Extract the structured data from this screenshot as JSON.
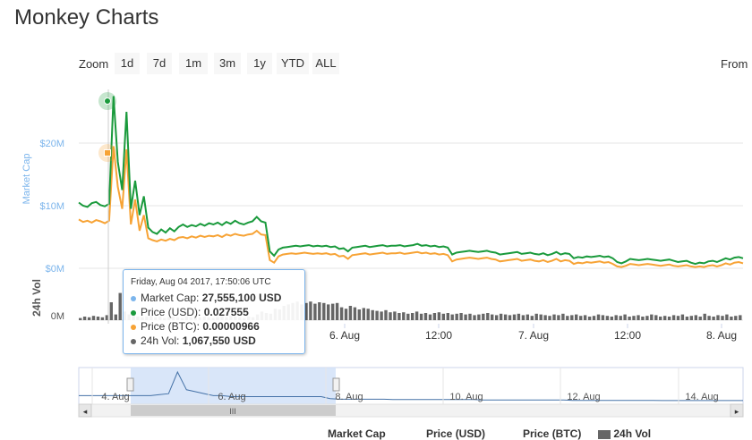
{
  "header": {
    "title": "Monkey Charts"
  },
  "toolbar": {
    "zoom_label": "Zoom",
    "buttons": [
      "1d",
      "7d",
      "1m",
      "3m",
      "1y",
      "YTD",
      "ALL"
    ],
    "from_label": "From"
  },
  "colors": {
    "market_cap": "#7cb5ec",
    "price_usd": "#1a9a3c",
    "price_btc": "#f7a335",
    "volume": "#666666",
    "navigator_fill": "#cfe0f7"
  },
  "chart_data": {
    "type": "line",
    "ylabel": "Market Cap",
    "y_ticks": [
      "$0M",
      "$10M",
      "$20M"
    ],
    "volume_label": "24h Vol",
    "volume_ticks": [
      "0M"
    ],
    "x_ticks": [
      "6. Aug",
      "12:00",
      "7. Aug",
      "12:00",
      "8. Aug"
    ],
    "navigator_ticks": [
      "4. Aug",
      "6. Aug",
      "8. Aug",
      "10. Aug",
      "12. Aug",
      "14. Aug"
    ],
    "series": [
      {
        "name": "Price (USD)",
        "values": [
          10.5,
          10.0,
          9.8,
          10.4,
          10.6,
          10.1,
          9.9,
          10.3,
          27.5,
          17.0,
          12.5,
          25.0,
          9.5,
          14.0,
          8.5,
          11.5,
          6.5,
          5.8,
          5.5,
          6.2,
          5.7,
          6.4,
          5.9,
          6.6,
          7.0,
          6.6,
          6.9,
          6.7,
          7.1,
          6.8,
          7.2,
          7.0,
          7.3,
          6.9,
          7.4,
          7.1,
          7.6,
          7.2,
          7.0,
          7.3,
          7.5,
          8.2,
          7.5,
          7.3,
          2.7,
          2.0,
          3.0,
          3.3,
          3.4,
          3.5,
          3.6,
          3.5,
          3.6,
          3.7,
          3.5,
          3.6,
          3.5,
          3.6,
          3.4,
          3.5,
          3.1,
          3.2,
          2.7,
          3.3,
          3.4,
          3.5,
          3.6,
          3.4,
          3.5,
          3.6,
          3.7,
          3.5,
          3.6,
          3.6,
          3.7,
          3.5,
          3.6,
          3.7,
          3.9,
          3.6,
          3.7,
          3.5,
          3.6,
          3.4,
          3.5,
          3.3,
          2.2,
          2.5,
          2.6,
          2.7,
          2.8,
          2.7,
          2.6,
          2.7,
          2.8,
          2.6,
          2.5,
          2.2,
          2.3,
          2.4,
          2.5,
          2.6,
          2.3,
          2.4,
          2.5,
          2.3,
          2.2,
          2.4,
          2.1,
          2.3,
          2.6,
          2.2,
          2.4,
          2.3,
          1.6,
          1.8,
          1.7,
          1.9,
          1.8,
          1.9,
          2.0,
          1.8,
          1.9,
          1.6,
          1.0,
          0.8,
          1.1,
          1.5,
          1.4,
          1.3,
          1.4,
          1.5,
          1.4,
          1.3,
          1.2,
          1.3,
          1.4,
          1.2,
          1.0,
          1.1,
          1.2,
          0.9,
          0.7,
          0.9,
          0.8,
          1.1,
          1.2,
          1.0,
          1.3,
          1.6,
          1.4,
          1.7,
          1.8,
          1.6
        ]
      },
      {
        "name": "Price (BTC)",
        "values": [
          7.8,
          7.4,
          7.6,
          7.3,
          7.7,
          7.5,
          7.2,
          7.6,
          19.5,
          13.0,
          9.5,
          19.0,
          7.0,
          11.0,
          6.0,
          8.5,
          4.8,
          4.5,
          4.3,
          4.6,
          4.4,
          4.7,
          4.5,
          4.9,
          5.0,
          4.8,
          5.1,
          4.9,
          5.2,
          5.0,
          5.2,
          5.1,
          5.3,
          5.0,
          5.4,
          5.2,
          5.5,
          5.3,
          5.2,
          5.4,
          5.5,
          6.0,
          5.4,
          5.3,
          1.3,
          0.9,
          1.9,
          2.2,
          2.3,
          2.4,
          2.3,
          2.4,
          2.5,
          2.4,
          2.3,
          2.4,
          2.3,
          2.4,
          2.2,
          2.3,
          1.9,
          2.0,
          1.5,
          2.1,
          2.2,
          2.3,
          2.4,
          2.2,
          2.3,
          2.4,
          2.5,
          2.3,
          2.4,
          2.4,
          2.5,
          2.3,
          2.4,
          2.5,
          2.6,
          2.4,
          2.5,
          2.3,
          2.4,
          2.2,
          2.3,
          2.1,
          1.1,
          1.4,
          1.5,
          1.6,
          1.7,
          1.6,
          1.5,
          1.6,
          1.7,
          1.5,
          1.4,
          1.1,
          1.2,
          1.3,
          1.4,
          1.5,
          1.2,
          1.3,
          1.4,
          1.2,
          1.1,
          1.3,
          1.0,
          1.2,
          1.5,
          1.1,
          1.3,
          1.2,
          0.7,
          0.9,
          0.8,
          1.0,
          0.9,
          1.0,
          1.1,
          0.9,
          1.0,
          0.7,
          0.3,
          0.2,
          0.4,
          0.7,
          0.6,
          0.5,
          0.6,
          0.7,
          0.6,
          0.5,
          0.4,
          0.5,
          0.6,
          0.4,
          0.3,
          0.4,
          0.5,
          0.3,
          0.2,
          0.3,
          0.2,
          0.4,
          0.5,
          0.3,
          0.5,
          0.8,
          0.6,
          0.9,
          1.0,
          0.8
        ]
      }
    ],
    "volume": [
      0.3,
      0.5,
      0.4,
      0.6,
      0.5,
      0.4,
      0.7,
      2.5,
      0.8,
      3.8,
      1.2,
      0.8,
      0.6,
      0.5,
      0.4,
      0.5,
      0.6,
      0.4,
      0.5,
      0.3,
      0.4,
      0.5,
      0.4,
      0.3,
      0.5,
      0.4,
      0.6,
      0.4,
      0.5,
      0.4,
      0.3,
      0.4,
      0.5,
      0.4,
      0.6,
      0.5,
      0.4,
      0.3,
      0.5,
      0.4,
      0.8,
      1.2,
      1.0,
      0.9,
      1.6,
      1.5,
      2.0,
      2.2,
      2.4,
      2.6,
      2.2,
      2.4,
      2.6,
      2.3,
      2.5,
      2.4,
      2.2,
      2.3,
      2.4,
      1.8,
      1.6,
      2.0,
      1.8,
      1.5,
      1.7,
      1.6,
      1.4,
      1.3,
      1.2,
      1.4,
      1.1,
      1.2,
      1.0,
      1.1,
      0.9,
      1.0,
      1.2,
      0.9,
      1.0,
      0.8,
      1.0,
      1.1,
      0.9,
      1.0,
      0.8,
      0.9,
      1.0,
      0.8,
      0.9,
      0.7,
      0.8,
      0.9,
      1.0,
      0.8,
      0.7,
      0.9,
      0.8,
      0.7,
      0.8,
      0.9,
      0.7,
      0.8,
      0.6,
      0.9,
      0.8,
      0.7,
      0.6,
      0.8,
      0.7,
      0.9,
      0.6,
      0.7,
      0.8,
      0.6,
      0.7,
      0.5,
      0.6,
      0.8,
      0.7,
      0.6,
      0.5,
      0.7,
      0.6,
      0.8,
      0.5,
      0.6,
      0.7,
      0.5,
      0.6,
      0.8,
      0.7,
      0.5,
      0.6,
      0.5,
      0.7,
      0.6,
      0.8,
      0.5,
      0.6,
      0.7,
      0.5,
      0.9,
      0.6,
      0.5,
      0.7,
      0.6,
      0.8,
      0.5,
      0.6,
      0.7
    ],
    "navigator": [
      0.3,
      0.3,
      0.3,
      0.3,
      0.3,
      0.3,
      0.3,
      0.3,
      0.3,
      0.35,
      0.4,
      1.5,
      0.6,
      0.5,
      0.4,
      0.3,
      0.3,
      0.25,
      0.25,
      0.25,
      0.25,
      0.25,
      0.25,
      0.25,
      0.25,
      0.25,
      0.25,
      0.25,
      0.15,
      0.12,
      0.12,
      0.12,
      0.12,
      0.12,
      0.12,
      0.1,
      0.1,
      0.1,
      0.1,
      0.1,
      0.1,
      0.1,
      0.1,
      0.1,
      0.1,
      0.08,
      0.08,
      0.08,
      0.08,
      0.08,
      0.08,
      0.08,
      0.08,
      0.08,
      0.08,
      0.06,
      0.06,
      0.06,
      0.06,
      0.06,
      0.06,
      0.06,
      0.06,
      0.06,
      0.06,
      0.05,
      0.05,
      0.05,
      0.05,
      0.05,
      0.05,
      0.05,
      0.05,
      0.05,
      0.05
    ]
  },
  "tooltip": {
    "date": "Friday, Aug 04 2017, 17:50:06 UTC",
    "rows": [
      {
        "label": "Market Cap:",
        "value": "27,555,100 USD"
      },
      {
        "label": "Price (USD):",
        "value": "0.027555"
      },
      {
        "label": "Price (BTC):",
        "value": "0.00000966"
      },
      {
        "label": "24h Vol:",
        "value": "1,067,550 USD"
      }
    ]
  },
  "legend_bottom": [
    "Market Cap",
    "Price (USD)",
    "Price (BTC)",
    "24h Vol"
  ]
}
